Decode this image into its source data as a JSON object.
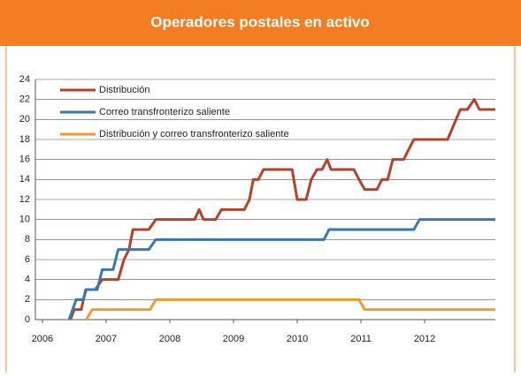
{
  "chart_data": {
    "type": "line",
    "title": "Operadores postales en activo",
    "xlim": [
      2005.89,
      2013.11
    ],
    "xticks": [
      2006,
      2007,
      2008,
      2009,
      2010,
      2011,
      2012
    ],
    "ylim": [
      0,
      24
    ],
    "yticks": [
      0,
      2,
      4,
      6,
      8,
      10,
      12,
      14,
      16,
      18,
      20,
      22,
      24
    ],
    "grid": true,
    "legend": "top-left",
    "series": [
      {
        "name": "Distribución",
        "color": "#b5412a",
        "x": [
          2006.44,
          2006.5,
          2006.61,
          2006.68,
          2006.83,
          2006.94,
          2007.19,
          2007.28,
          2007.36,
          2007.42,
          2007.67,
          2007.78,
          2008.39,
          2008.46,
          2008.53,
          2008.72,
          2008.81,
          2009.17,
          2009.25,
          2009.31,
          2009.39,
          2009.47,
          2009.92,
          2010.0,
          2010.14,
          2010.22,
          2010.31,
          2010.39,
          2010.47,
          2010.53,
          2010.89,
          2010.97,
          2011.06,
          2011.25,
          2011.33,
          2011.42,
          2011.5,
          2011.67,
          2011.83,
          2012.36,
          2012.56,
          2012.67,
          2012.78,
          2012.86,
          2013.11
        ],
        "values": [
          0,
          1,
          1,
          3,
          3,
          4,
          4,
          6,
          7,
          9,
          9,
          10,
          10,
          11,
          10,
          10,
          11,
          11,
          12,
          14,
          14,
          15,
          15,
          12,
          12,
          14,
          15,
          15,
          16,
          15,
          15,
          14,
          13,
          13,
          14,
          14,
          16,
          16,
          18,
          18,
          21,
          21,
          22,
          21,
          21
        ]
      },
      {
        "name": "Correo transfronterizo saliente",
        "color": "#3a76b0",
        "x": [
          2006.42,
          2006.53,
          2006.64,
          2006.69,
          2006.86,
          2006.94,
          2007.11,
          2007.19,
          2007.67,
          2007.78,
          2010.42,
          2010.5,
          2011.83,
          2011.92,
          2013.11
        ],
        "values": [
          0,
          2,
          2,
          3,
          3,
          5,
          5,
          7,
          7,
          8,
          8,
          9,
          9,
          10,
          10
        ]
      },
      {
        "name": "Distribución y correo transfronterizo saliente",
        "color": "#f39a2e",
        "x": [
          2006.69,
          2006.78,
          2007.69,
          2007.78,
          2010.97,
          2011.06,
          2013.11
        ],
        "values": [
          0,
          1,
          1,
          2,
          2,
          1,
          1
        ]
      }
    ]
  }
}
